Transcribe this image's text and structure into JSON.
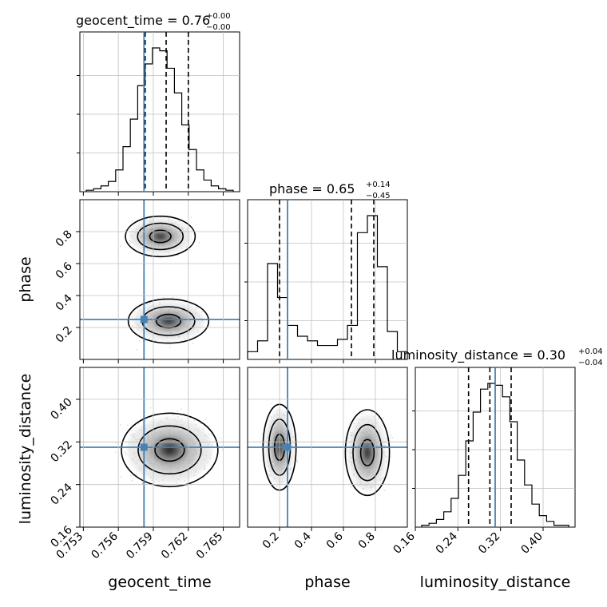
{
  "chart_data": {
    "type": "corner",
    "parameters": [
      "geocent_time",
      "phase",
      "luminosity_distance"
    ],
    "truths": {
      "geocent_time": 0.7582,
      "phase": 0.25,
      "luminosity_distance": 0.31
    },
    "colors": {
      "truth": "#4682b4",
      "line": "#000000",
      "grid": "#c0c0c0",
      "points": "#9a9a9a"
    },
    "titles": {
      "geocent_time": {
        "text": "geocent_time = 0.76",
        "sup": "+0.00",
        "sub": "−0.00"
      },
      "phase": {
        "text": "phase = 0.65",
        "sup": "+0.14",
        "sub": "−0.45"
      },
      "luminosity_distance": {
        "text": "luminosity_distance = 0.30",
        "sup": "+0.04",
        "sub": "−0.04"
      }
    },
    "axes": {
      "geocent_time": {
        "label": "geocent_time",
        "range": [
          0.7527,
          0.7664
        ],
        "ticks": [
          "0.753",
          "0.756",
          "0.759",
          "0.762",
          "0.765"
        ],
        "tick_values": [
          0.753,
          0.756,
          0.759,
          0.762,
          0.765
        ]
      },
      "phase": {
        "label": "phase",
        "range": [
          0.0,
          1.0
        ],
        "ticks": [
          "0.2",
          "0.4",
          "0.6",
          "0.8"
        ],
        "tick_values": [
          0.2,
          0.4,
          0.6,
          0.8
        ]
      },
      "luminosity_distance": {
        "label": "luminosity_distance",
        "range": [
          0.16,
          0.46
        ],
        "ticks": [
          "0.16",
          "0.24",
          "0.32",
          "0.40"
        ],
        "tick_values": [
          0.16,
          0.24,
          0.32,
          0.4
        ]
      }
    },
    "histograms": {
      "geocent_time": {
        "values": [
          1,
          2,
          4,
          7,
          15,
          31,
          50,
          73,
          88,
          99,
          97,
          85,
          68,
          46,
          29,
          15,
          8,
          4,
          2,
          1
        ],
        "quantiles": [
          0.7583,
          0.7601,
          0.762
        ]
      },
      "phase": {
        "values": [
          5,
          12,
          62,
          40,
          22,
          15,
          12,
          9,
          9,
          13,
          22,
          82,
          93,
          60,
          18,
          5
        ],
        "quantiles": [
          0.2,
          0.65,
          0.79
        ]
      },
      "luminosity_distance": {
        "values": [
          1,
          2,
          4,
          8,
          15,
          27,
          45,
          60,
          72,
          75,
          74,
          68,
          55,
          35,
          22,
          12,
          6,
          3,
          1,
          1
        ],
        "quantiles": [
          0.26,
          0.3,
          0.34
        ]
      }
    },
    "grid": true
  }
}
